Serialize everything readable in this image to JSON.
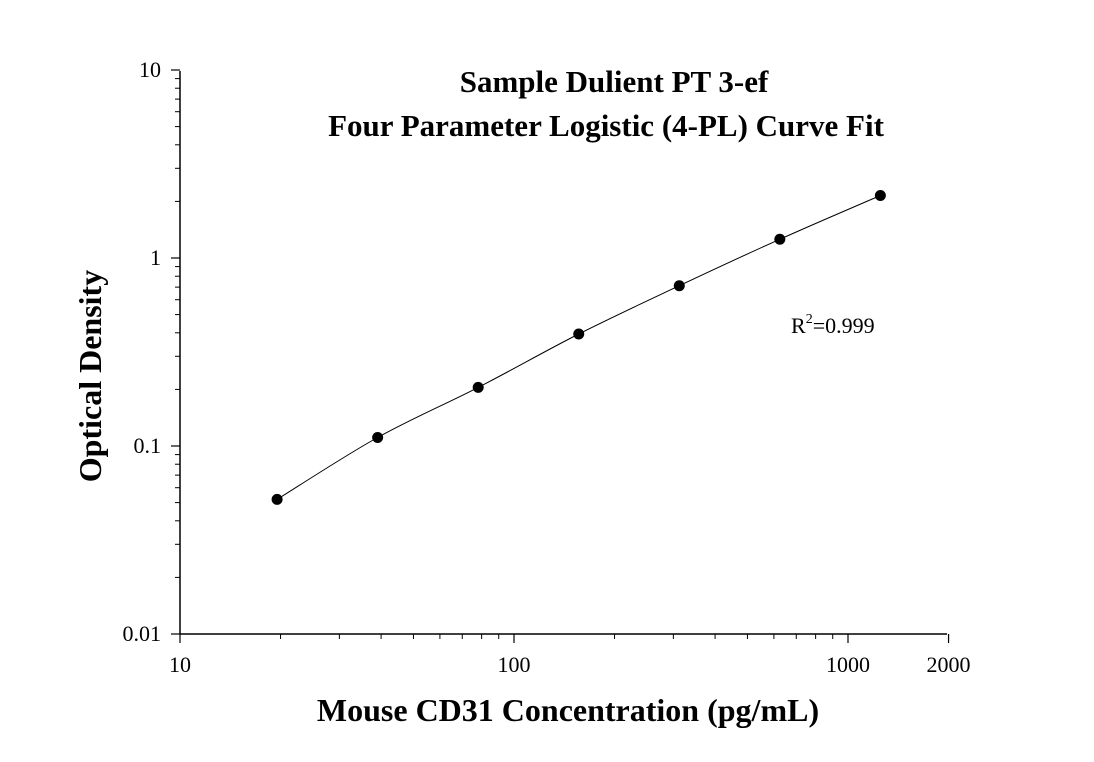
{
  "chart_data": {
    "type": "scatter",
    "title": "Sample Dulient PT 3-ef",
    "subtitle": "Four Parameter Logistic (4-PL) Curve Fit",
    "xlabel": "Mouse CD31 Concentration (pg/mL)",
    "ylabel": "Optical Density",
    "xscale": "log",
    "yscale": "log",
    "xlim": [
      10,
      2000
    ],
    "ylim": [
      0.01,
      10
    ],
    "x_ticks": [
      10,
      100,
      1000,
      2000
    ],
    "x_tick_labels": [
      "10",
      "100",
      "1000",
      "2000"
    ],
    "y_ticks": [
      0.01,
      0.1,
      1,
      10
    ],
    "y_tick_labels": [
      "0.01",
      "0.1",
      "1",
      "10"
    ],
    "grid": false,
    "series": [
      {
        "x": [
          19.53,
          39.06,
          78.13,
          156.25,
          312.5,
          625,
          1250
        ],
        "y": [
          0.052,
          0.111,
          0.205,
          0.394,
          0.712,
          1.258,
          2.15
        ],
        "marker": "circle",
        "line": "fit",
        "color": "#000000"
      }
    ],
    "annotation": {
      "text_main": "R",
      "text_sup": "2",
      "text_rest": "=0.999"
    }
  }
}
